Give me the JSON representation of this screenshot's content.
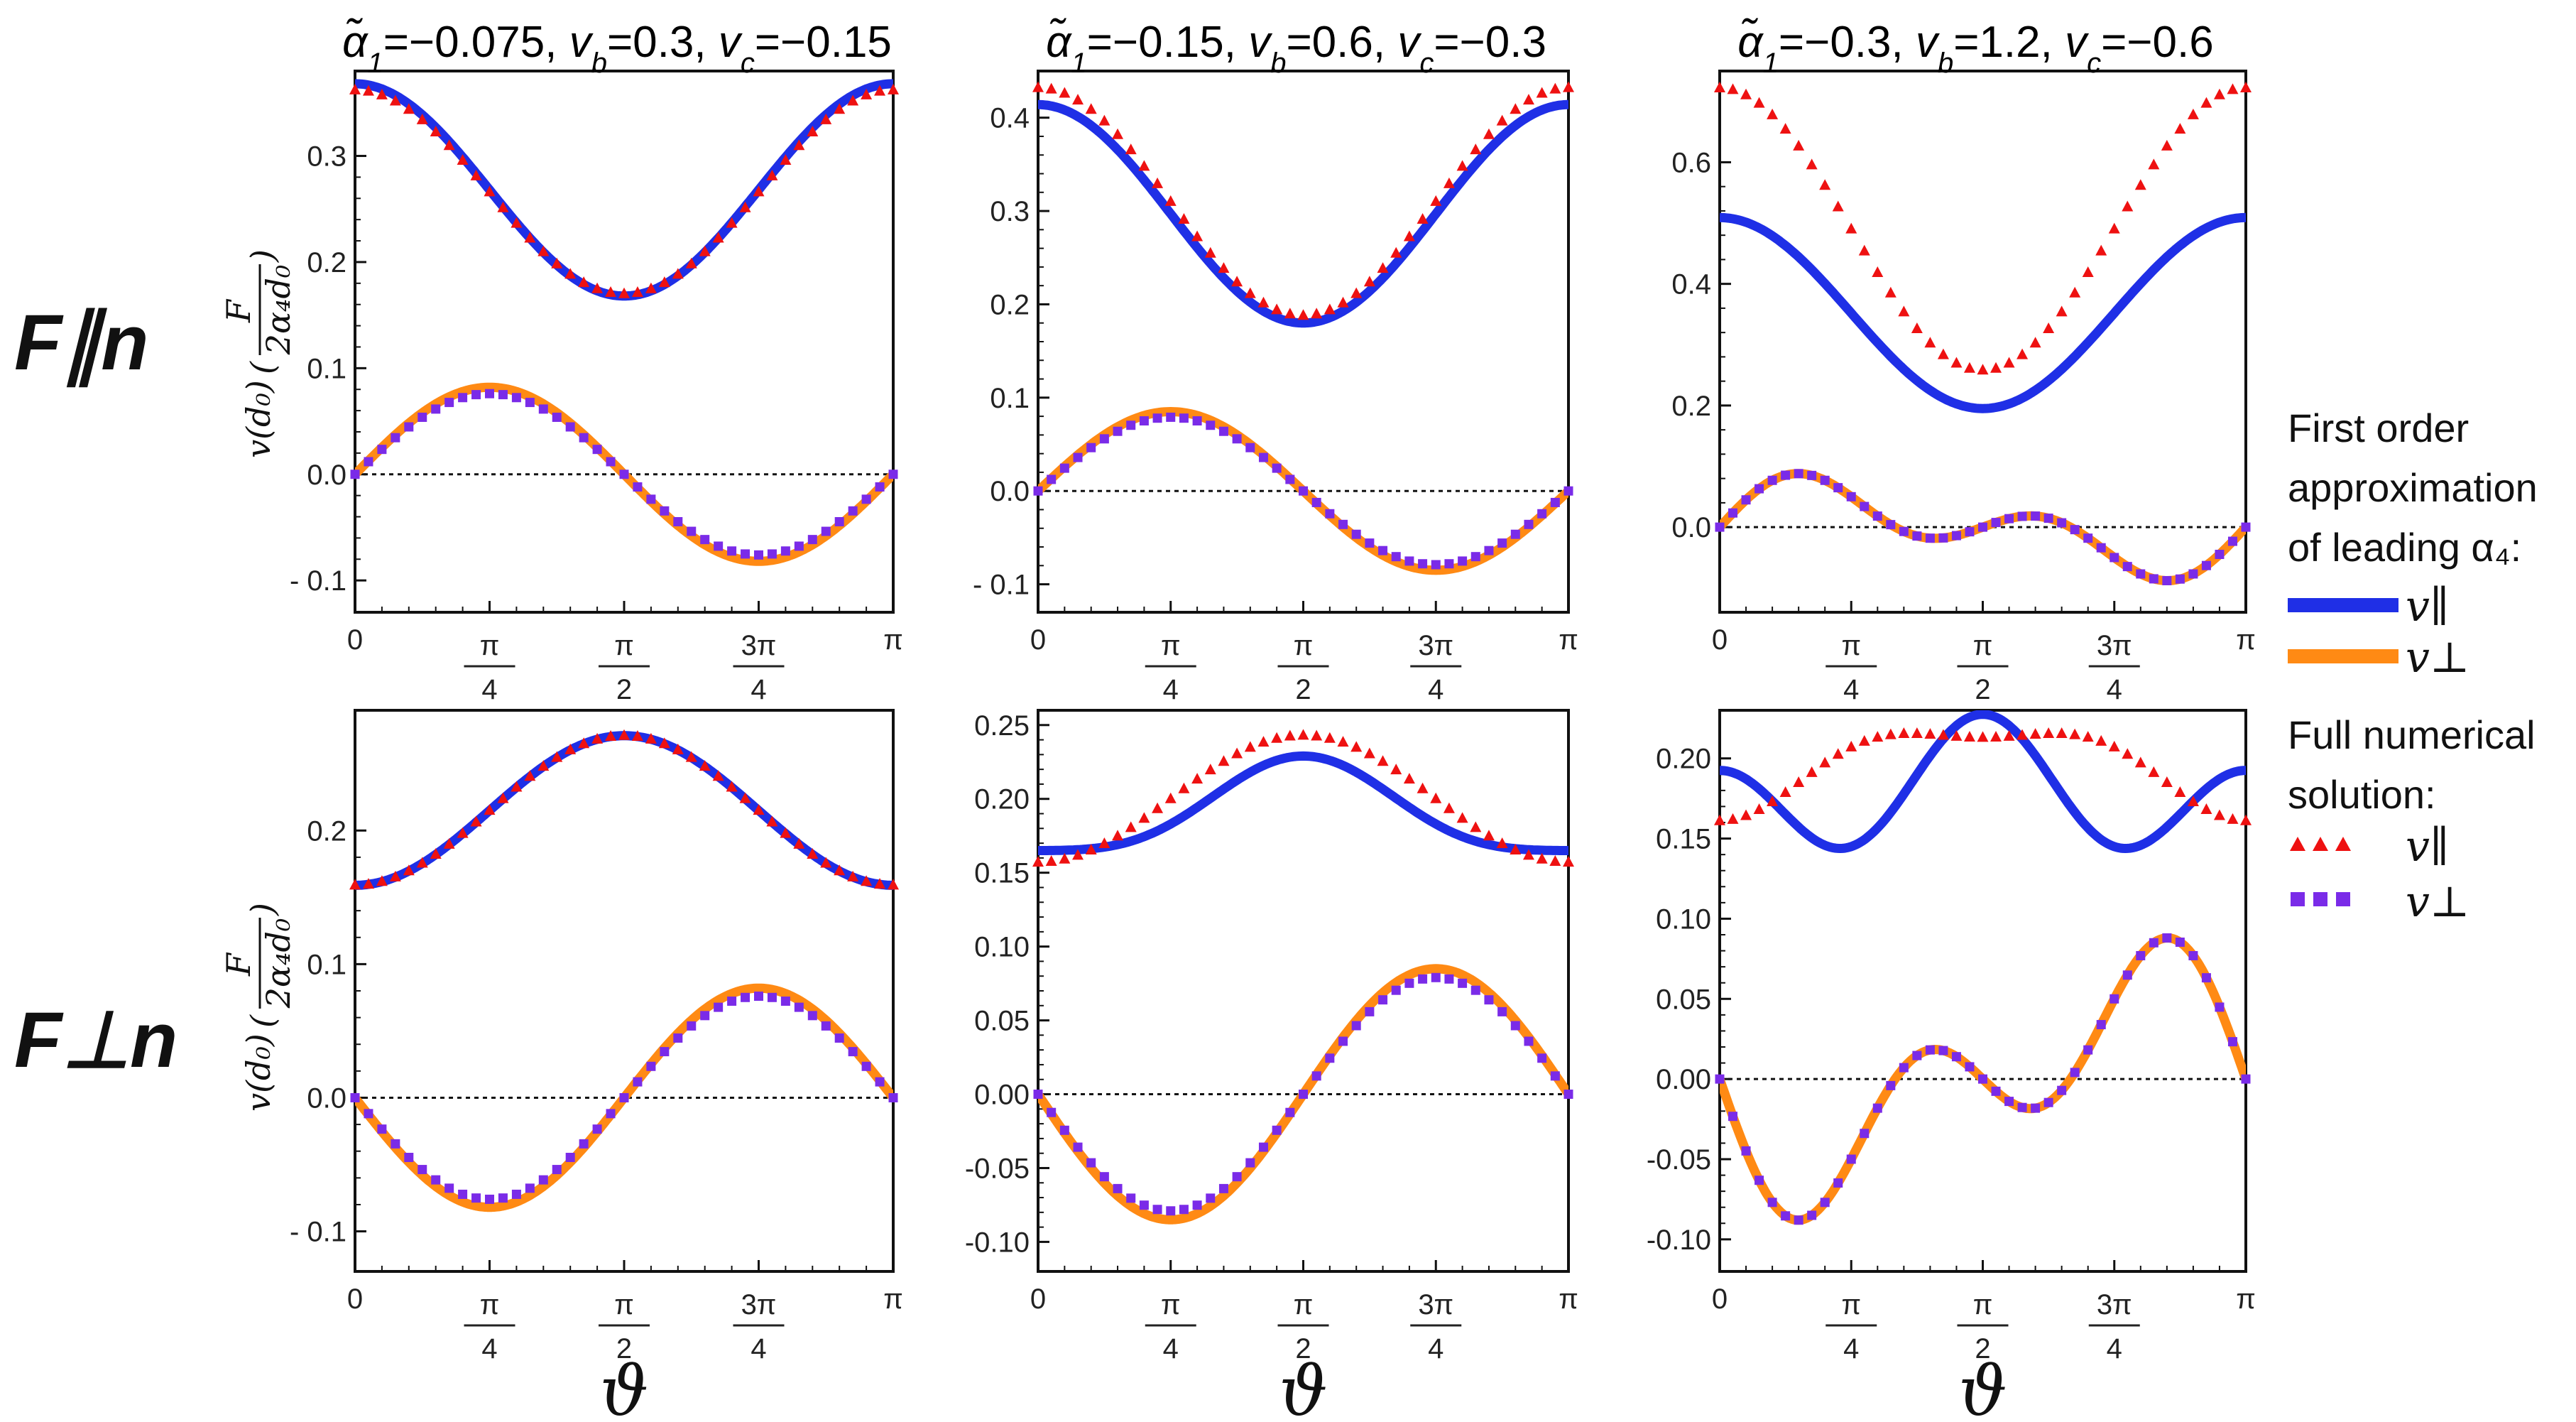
{
  "figure": {
    "row_labels": [
      "F∥n",
      "F⊥n"
    ],
    "ylabel_text": "v(d₀)",
    "ylabel_num": "F",
    "ylabel_den": "2α₄d₀",
    "xlabel": "ϑ",
    "x_tick_labels": [
      "0",
      "π/4",
      "π/2",
      "3π/4",
      "π"
    ]
  },
  "legend": {
    "title1_lines": [
      "First order",
      "approximation",
      "of leading α₄:"
    ],
    "title2_lines": [
      "Full numerical",
      "solution:"
    ],
    "v_par": "v∥",
    "v_perp": "v⊥",
    "color_par_line": "#1f2fe6",
    "color_perp_line": "#ff8a14",
    "color_par_marker": "#ee1111",
    "color_perp_marker": "#7a2be8"
  },
  "chart_data": [
    {
      "type": "line",
      "row": 0,
      "col": 0,
      "title": "α̃₁=−0.075, v_b=0.3, v_c=−0.15",
      "title_parts": [
        "=−0.075, ",
        "=0.3, ",
        "=−0.15"
      ],
      "xlabel": "ϑ",
      "ylabel": "v(d0)(F/(2α4 d0))",
      "xlim": [
        0,
        3.1416
      ],
      "ylim": [
        -0.13,
        0.38
      ],
      "yticks": [
        -0.1,
        0.0,
        0.1,
        0.2,
        0.3
      ],
      "ytick_labels": [
        "- 0.1",
        "0.0",
        "0.1",
        "0.2",
        "0.3"
      ],
      "series": [
        {
          "name": "v∥ first order",
          "kind": "line",
          "color": "#1f2fe6",
          "f": "A",
          "p": [
            0.268,
            0.1,
            0,
            0,
            0
          ]
        },
        {
          "name": "v⊥ first order",
          "kind": "line",
          "color": "#ff8a14",
          "f": "B",
          "p": [
            0.082,
            0,
            0,
            0,
            0
          ]
        },
        {
          "name": "v∥ numerical",
          "kind": "tri",
          "color": "#ee1111",
          "f": "A",
          "p": [
            0.266,
            0.096,
            0,
            0,
            0
          ]
        },
        {
          "name": "v⊥ numerical",
          "kind": "sq",
          "color": "#7a2be8",
          "f": "B",
          "p": [
            0.076,
            0,
            0,
            0,
            0
          ]
        }
      ]
    },
    {
      "type": "line",
      "row": 0,
      "col": 1,
      "title": "α̃₁=−0.15, v_b=0.6, v_c=−0.3",
      "title_parts": [
        "=−0.15, ",
        "=0.6, ",
        "=−0.3"
      ],
      "xlabel": "ϑ",
      "ylabel": "v(d0)(F/(2α4 d0))",
      "xlim": [
        0,
        3.1416
      ],
      "ylim": [
        -0.13,
        0.45
      ],
      "yticks": [
        -0.1,
        0.0,
        0.1,
        0.2,
        0.3,
        0.4
      ],
      "ytick_labels": [
        "- 0.1",
        "0.0",
        "0.1",
        "0.2",
        "0.3",
        "0.4"
      ],
      "series": [
        {
          "name": "v∥ first order",
          "kind": "line",
          "color": "#1f2fe6",
          "f": "A",
          "p": [
            0.297,
            0.117,
            0,
            0,
            0
          ]
        },
        {
          "name": "v⊥ first order",
          "kind": "line",
          "color": "#ff8a14",
          "f": "B",
          "p": [
            0.085,
            0,
            0,
            0,
            0
          ]
        },
        {
          "name": "v∥ numerical",
          "kind": "tri",
          "color": "#ee1111",
          "f": "A",
          "p": [
            0.31,
            0.122,
            0,
            0,
            0
          ]
        },
        {
          "name": "v⊥ numerical",
          "kind": "sq",
          "color": "#7a2be8",
          "f": "B",
          "p": [
            0.079,
            0,
            0,
            0,
            0
          ]
        }
      ]
    },
    {
      "type": "line",
      "row": 0,
      "col": 2,
      "title": "α̃₁=−0.3, v_b=1.2, v_c=−0.6",
      "title_parts": [
        "=−0.3, ",
        "=1.2, ",
        "=−0.6"
      ],
      "xlabel": "ϑ",
      "ylabel": "v(d0)(F/(2α4 d0))",
      "xlim": [
        0,
        3.1416
      ],
      "ylim": [
        -0.14,
        0.75
      ],
      "yticks": [
        0.0,
        0.2,
        0.4,
        0.6
      ],
      "ytick_labels": [
        "0.0",
        "0.2",
        "0.4",
        "0.6"
      ],
      "series": [
        {
          "name": "v∥ first order",
          "kind": "line",
          "color": "#1f2fe6",
          "f": "A",
          "p": [
            0.352,
            0.157,
            0,
            0,
            0
          ]
        },
        {
          "name": "v⊥ first order",
          "kind": "line",
          "color": "#ff8a14",
          "f": "B",
          "p": [
            0.05,
            0.05,
            0,
            0,
            0
          ]
        },
        {
          "name": "v∥ numerical",
          "kind": "tri",
          "color": "#ee1111",
          "f": "A",
          "p": [
            0.49,
            0.232,
            0,
            0,
            0
          ]
        },
        {
          "name": "v⊥ numerical",
          "kind": "sq",
          "color": "#7a2be8",
          "f": "B",
          "p": [
            0.05,
            0.05,
            0,
            0,
            0
          ]
        }
      ]
    },
    {
      "type": "line",
      "row": 1,
      "col": 0,
      "title": "",
      "xlabel": "ϑ",
      "ylabel": "v(d0)(F/(2α4 d0))",
      "xlim": [
        0,
        3.1416
      ],
      "ylim": [
        -0.13,
        0.29
      ],
      "yticks": [
        -0.1,
        0.0,
        0.1,
        0.2
      ],
      "ytick_labels": [
        "- 0.1",
        "0.0",
        "0.1",
        "0.2"
      ],
      "series": [
        {
          "name": "v∥ first order",
          "kind": "line",
          "color": "#1f2fe6",
          "f": "A",
          "p": [
            0.215,
            -0.056,
            0,
            0,
            0
          ]
        },
        {
          "name": "v⊥ first order",
          "kind": "line",
          "color": "#ff8a14",
          "f": "B",
          "p": [
            -0.082,
            0,
            0,
            0,
            0
          ]
        },
        {
          "name": "v∥ numerical",
          "kind": "tri",
          "color": "#ee1111",
          "f": "A",
          "p": [
            0.215,
            -0.056,
            0,
            0,
            0
          ]
        },
        {
          "name": "v⊥ numerical",
          "kind": "sq",
          "color": "#7a2be8",
          "f": "B",
          "p": [
            -0.076,
            0,
            0,
            0,
            0
          ]
        }
      ]
    },
    {
      "type": "line",
      "row": 1,
      "col": 1,
      "title": "",
      "xlabel": "ϑ",
      "ylabel": "v(d0)(F/(2α4 d0))",
      "xlim": [
        0,
        3.1416
      ],
      "ylim": [
        -0.12,
        0.26
      ],
      "yticks": [
        -0.1,
        -0.05,
        0.0,
        0.05,
        0.1,
        0.15,
        0.2,
        0.25
      ],
      "ytick_labels": [
        "-0.10",
        "-0.05",
        "0.00",
        "0.05",
        "0.10",
        "0.15",
        "0.20",
        "0.25"
      ],
      "series": [
        {
          "name": "v∥ first order",
          "kind": "line",
          "color": "#1f2fe6",
          "f": "C",
          "p": [
            0.19,
            -0.032,
            0.007,
            0,
            0
          ]
        },
        {
          "name": "v⊥ first order",
          "kind": "line",
          "color": "#ff8a14",
          "f": "B",
          "p": [
            -0.085,
            0,
            0,
            0,
            0
          ]
        },
        {
          "name": "v∥ numerical",
          "kind": "tri",
          "color": "#ee1111",
          "f": "C",
          "p": [
            0.2,
            -0.043,
            0,
            0,
            0
          ]
        },
        {
          "name": "v⊥ numerical",
          "kind": "sq",
          "color": "#7a2be8",
          "f": "B",
          "p": [
            -0.079,
            0,
            0,
            0,
            0
          ]
        }
      ]
    },
    {
      "type": "line",
      "row": 1,
      "col": 2,
      "title": "",
      "xlabel": "ϑ",
      "ylabel": "v(d0)(F/(2α4 d0))",
      "xlim": [
        0,
        3.1416
      ],
      "ylim": [
        -0.12,
        0.23
      ],
      "yticks": [
        -0.1,
        -0.05,
        0.0,
        0.05,
        0.1,
        0.15,
        0.2
      ],
      "ytick_labels": [
        "-0.10",
        "-0.05",
        "0.00",
        "0.05",
        "0.10",
        "0.15",
        "0.20"
      ],
      "series": [
        {
          "name": "v∥ first order",
          "kind": "line",
          "color": "#1f2fe6",
          "f": "C",
          "p": [
            0.1775,
            -0.0175,
            0.0325,
            0,
            0
          ]
        },
        {
          "name": "v⊥ first order",
          "kind": "line",
          "color": "#ff8a14",
          "f": "B",
          "p": [
            -0.05,
            -0.05,
            0,
            0,
            0
          ]
        },
        {
          "name": "v∥ numerical",
          "kind": "tri",
          "color": "#ee1111",
          "f": "C",
          "p": [
            0.197,
            -0.026,
            -0.01,
            0,
            0
          ]
        },
        {
          "name": "v⊥ numerical",
          "kind": "sq",
          "color": "#7a2be8",
          "f": "B",
          "p": [
            -0.05,
            -0.05,
            0,
            0,
            0
          ]
        }
      ]
    }
  ]
}
